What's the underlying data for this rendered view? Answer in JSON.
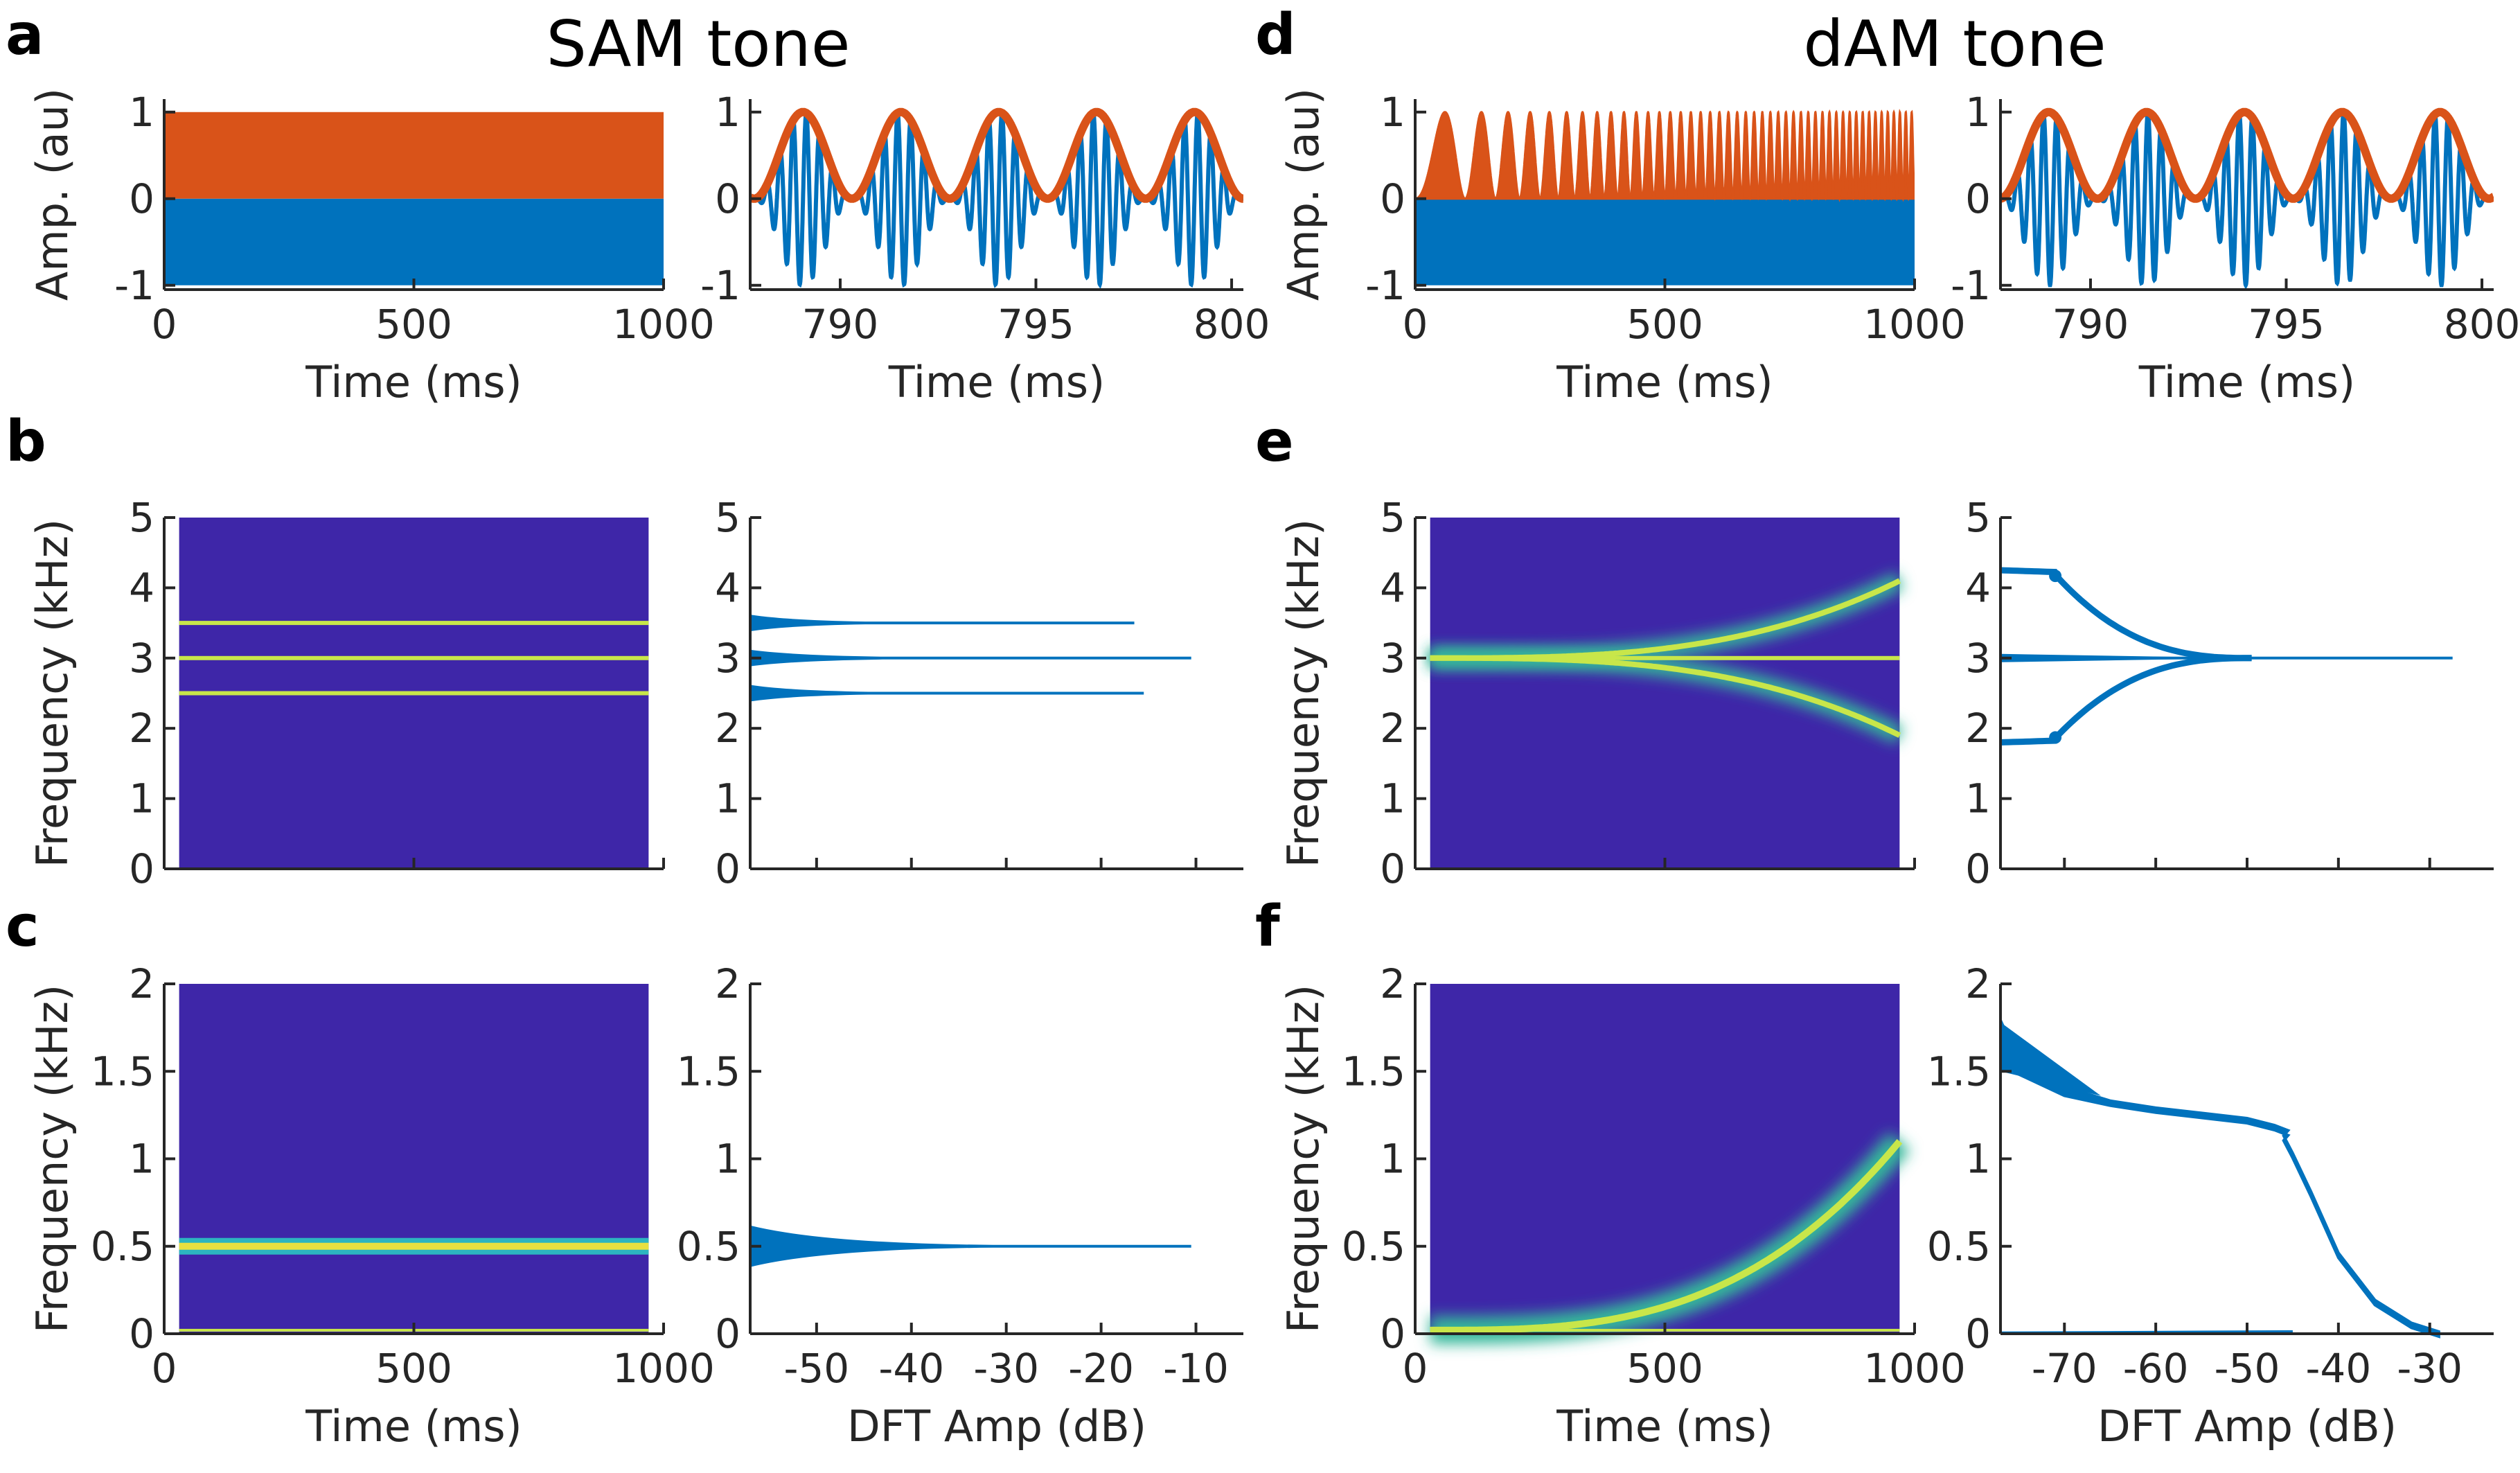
{
  "figure": {
    "titles": [
      "SAM tone",
      "dAM tone"
    ],
    "panel_letters": [
      "a",
      "b",
      "c",
      "d",
      "e",
      "f"
    ]
  },
  "colors": {
    "signal": "#0072BD",
    "envelope": "#D95319",
    "spectrogram_background": "#3E26A8",
    "spectrogram_line": "#C8E64A",
    "spectrum_line": "#0072BD",
    "axis": "#262626"
  },
  "chart_data": [
    {
      "id": "a-left",
      "type": "line",
      "panel_letter": "a",
      "xlabel": "Time (ms)",
      "ylabel": "Amp. (au)",
      "xlim": [
        0,
        1000
      ],
      "ylim": [
        -1.05,
        1.15
      ],
      "xticks": [
        0,
        500,
        1000
      ],
      "xticklabels": [
        "0",
        "500",
        "1000"
      ],
      "yticks": [
        -1,
        0,
        1
      ],
      "yticklabels": [
        "-1",
        "0",
        "1"
      ],
      "series": [
        {
          "role": "carrier",
          "description_values": {
            "fill_from": 0,
            "fill_to": 1000,
            "min": -1,
            "max": 1
          }
        },
        {
          "role": "envelope",
          "description_values": {
            "fill_from": 0,
            "fill_to": 1000,
            "min": 0,
            "max": 1
          }
        }
      ]
    },
    {
      "id": "a-right",
      "type": "line",
      "xlabel": "Time (ms)",
      "ylabel": "",
      "xlim": [
        787.7,
        800.3
      ],
      "ylim": [
        -1.05,
        1.15
      ],
      "xticks": [
        790,
        795,
        800
      ],
      "xticklabels": [
        "790",
        "795",
        "800"
      ],
      "yticks": [
        -1,
        0,
        1
      ],
      "yticklabels": [
        "-1",
        "0",
        "1"
      ],
      "carrier_khz": 3,
      "modulation_hz": 500
    },
    {
      "id": "b-left",
      "type": "heatmap",
      "panel_letter": "b",
      "xlabel": "",
      "ylabel": "Frequency (kHz)",
      "xlim": [
        0,
        1000
      ],
      "ylim": [
        0,
        5
      ],
      "yticks": [
        0,
        1,
        2,
        3,
        4,
        5
      ],
      "yticklabels": [
        "0",
        "1",
        "2",
        "3",
        "4",
        "5"
      ],
      "xticks": [
        0,
        500,
        1000
      ],
      "image_extent_ms": [
        30,
        970
      ],
      "lines_khz": [
        2.5,
        3.0,
        3.5
      ]
    },
    {
      "id": "b-right",
      "type": "line",
      "xlabel": "",
      "ylabel": "",
      "xlim": [
        -57,
        -5
      ],
      "ylim": [
        0,
        5
      ],
      "yticks": [
        0,
        1,
        2,
        3,
        4,
        5
      ],
      "yticklabels": [
        "0",
        "1",
        "2",
        "3",
        "4",
        "5"
      ],
      "xticks": [
        -50,
        -40,
        -30,
        -20,
        -10
      ],
      "peaks": [
        {
          "freq_khz": 2.5,
          "amp_db": -15.5
        },
        {
          "freq_khz": 3.0,
          "amp_db": -10.5
        },
        {
          "freq_khz": 3.5,
          "amp_db": -16.5
        }
      ]
    },
    {
      "id": "c-left",
      "type": "heatmap",
      "panel_letter": "c",
      "xlabel": "Time (ms)",
      "ylabel": "Frequency (kHz)",
      "xlim": [
        0,
        1000
      ],
      "ylim": [
        0,
        2
      ],
      "xticks": [
        0,
        500,
        1000
      ],
      "xticklabels": [
        "0",
        "500",
        "1000"
      ],
      "yticks": [
        0,
        0.5,
        1,
        1.5,
        2
      ],
      "yticklabels": [
        "0",
        "0.5",
        "1",
        "1.5",
        "2"
      ],
      "image_extent_ms": [
        30,
        970
      ],
      "lines_khz": [
        0.5,
        0.02
      ]
    },
    {
      "id": "c-right",
      "type": "line",
      "xlabel": "DFT Amp (dB)",
      "ylabel": "",
      "xlim": [
        -57,
        -5
      ],
      "ylim": [
        0,
        2
      ],
      "xticks": [
        -50,
        -40,
        -30,
        -20,
        -10
      ],
      "xticklabels": [
        "-50",
        "-40",
        "-30",
        "-20",
        "-10"
      ],
      "yticks": [
        0,
        0.5,
        1,
        1.5,
        2
      ],
      "yticklabels": [
        "0",
        "0.5",
        "1",
        "1.5",
        "2"
      ],
      "peaks": [
        {
          "freq_khz": 0.5,
          "amp_db": -10.5
        }
      ]
    },
    {
      "id": "d-left",
      "type": "line",
      "panel_letter": "d",
      "xlabel": "Time (ms)",
      "ylabel": "Amp. (au)",
      "xlim": [
        0,
        1000
      ],
      "ylim": [
        -1.05,
        1.15
      ],
      "xticks": [
        0,
        500,
        1000
      ],
      "xticklabels": [
        "0",
        "500",
        "1000"
      ],
      "yticks": [
        -1,
        0,
        1
      ],
      "yticklabels": [
        "-1",
        "0",
        "1"
      ]
    },
    {
      "id": "d-right",
      "type": "line",
      "xlabel": "Time (ms)",
      "ylabel": "",
      "xlim": [
        787.7,
        800.3
      ],
      "ylim": [
        -1.05,
        1.15
      ],
      "xticks": [
        790,
        795,
        800
      ],
      "xticklabels": [
        "790",
        "795",
        "800"
      ],
      "yticks": [
        -1,
        0,
        1
      ],
      "yticklabels": [
        "-1",
        "0",
        "1"
      ],
      "carrier_khz": 3,
      "modulation_hz": 500
    },
    {
      "id": "e-left",
      "type": "heatmap",
      "panel_letter": "e",
      "xlabel": "",
      "ylabel": "Frequency (kHz)",
      "xlim": [
        0,
        1000
      ],
      "ylim": [
        0,
        5
      ],
      "yticks": [
        0,
        1,
        2,
        3,
        4,
        5
      ],
      "yticklabels": [
        "0",
        "1",
        "2",
        "3",
        "4",
        "5"
      ],
      "xticks": [
        0,
        500,
        1000
      ],
      "image_extent_ms": [
        30,
        970
      ],
      "center_khz": 3.0,
      "sideband_end_khz": [
        1.9,
        4.1
      ]
    },
    {
      "id": "e-right",
      "type": "line",
      "xlabel": "",
      "ylabel": "",
      "xlim": [
        -77,
        -23
      ],
      "ylim": [
        0,
        5
      ],
      "yticks": [
        0,
        1,
        2,
        3,
        4,
        5
      ],
      "yticklabels": [
        "0",
        "1",
        "2",
        "3",
        "4",
        "5"
      ],
      "xticks": [
        -70,
        -60,
        -50,
        -40,
        -30
      ],
      "center": {
        "freq_khz": 3.0,
        "amp_db": -27.5
      },
      "upper_branch": {
        "start_khz": 4.25,
        "start_db": -77,
        "end_khz": 3.0,
        "end_db": -49.5
      },
      "lower_branch": {
        "start_khz": 1.8,
        "start_db": -77,
        "end_khz": 3.0,
        "end_db": -49.5
      }
    },
    {
      "id": "f-left",
      "type": "heatmap",
      "panel_letter": "f",
      "xlabel": "Time (ms)",
      "ylabel": "Frequency (kHz)",
      "xlim": [
        0,
        1000
      ],
      "ylim": [
        0,
        2
      ],
      "xticks": [
        0,
        500,
        1000
      ],
      "xticklabels": [
        "0",
        "500",
        "1000"
      ],
      "yticks": [
        0,
        0.5,
        1,
        1.5,
        2
      ],
      "yticklabels": [
        "0",
        "0.5",
        "1",
        "1.5",
        "2"
      ],
      "image_extent_ms": [
        30,
        970
      ],
      "sweep": {
        "start_khz": 0.02,
        "end_khz": 1.1
      },
      "lines_khz": [
        0.02
      ]
    },
    {
      "id": "f-right",
      "type": "line",
      "xlabel": "DFT Amp (dB)",
      "ylabel": "",
      "xlim": [
        -77,
        -23
      ],
      "ylim": [
        0,
        2
      ],
      "xticks": [
        -70,
        -60,
        -50,
        -40,
        -30
      ],
      "xticklabels": [
        "-70",
        "-60",
        "-50",
        "-40",
        "-30"
      ],
      "yticks": [
        0,
        0.5,
        1,
        1.5,
        2
      ],
      "yticklabels": [
        "0",
        "0.5",
        "1",
        "1.5",
        "2"
      ],
      "curve": [
        [
          -77,
          1.78
        ],
        [
          -75,
          1.55
        ],
        [
          -70,
          1.4
        ],
        [
          -65,
          1.32
        ],
        [
          -60,
          1.28
        ],
        [
          -55,
          1.25
        ],
        [
          -50,
          1.22
        ],
        [
          -47,
          1.18
        ],
        [
          -45.5,
          1.15
        ],
        [
          -46,
          1.12
        ],
        [
          -45,
          1.02
        ],
        [
          -43,
          0.8
        ],
        [
          -40,
          0.45
        ],
        [
          -36,
          0.18
        ],
        [
          -32,
          0.05
        ],
        [
          -29,
          0.0
        ]
      ],
      "baseline": {
        "freq_khz": 0.0,
        "amp_db_range": [
          -77,
          -45
        ]
      }
    }
  ]
}
